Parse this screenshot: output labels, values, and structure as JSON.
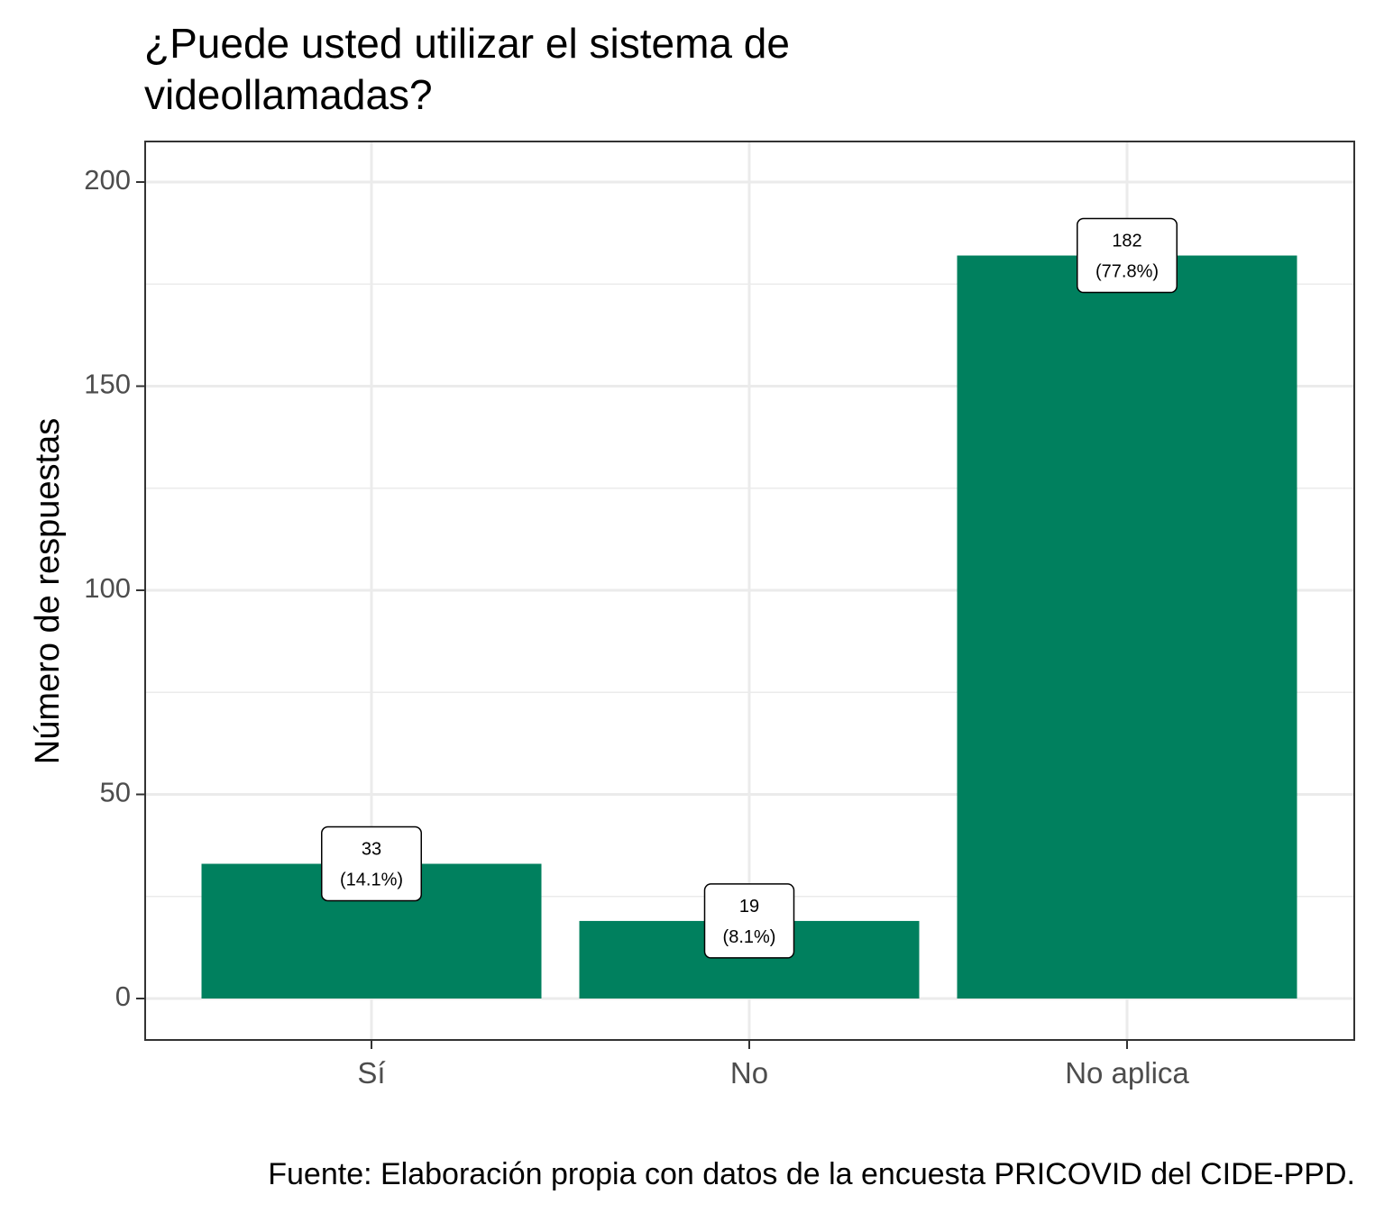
{
  "chart_data": {
    "type": "bar",
    "title": "¿Puede usted utilizar el sistema de videollamadas?",
    "title_lines": [
      "¿Puede usted utilizar el sistema de",
      "videollamadas?"
    ],
    "xlabel": "",
    "ylabel": "Número de respuestas",
    "caption": "Fuente: Elaboración propia con datos de la encuesta PRICOVID del CIDE-PPD.",
    "categories": [
      "Sí",
      "No",
      "No aplica"
    ],
    "values": [
      33,
      19,
      182
    ],
    "value_labels": [
      "33",
      "19",
      "182"
    ],
    "percent_labels": [
      "(14.1%)",
      "(8.1%)",
      "(77.8%)"
    ],
    "yticks": [
      "0",
      "50",
      "100",
      "150",
      "200"
    ],
    "ylim": [
      -10,
      210
    ],
    "grid": true,
    "legend": "none",
    "bar_color": "#00805E"
  }
}
